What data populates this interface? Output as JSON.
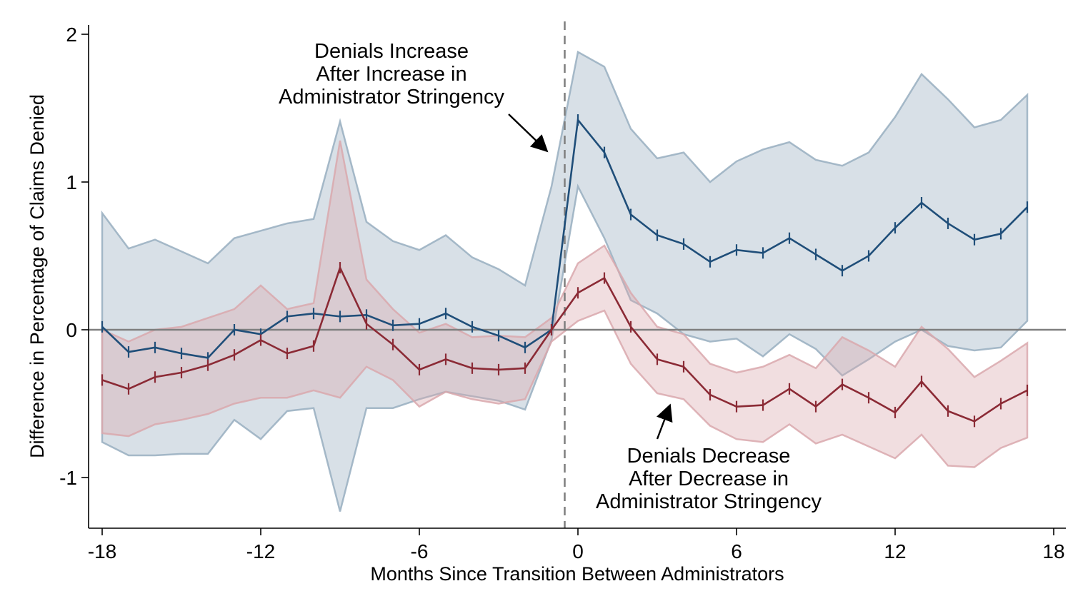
{
  "chart_data": {
    "type": "line",
    "title": "",
    "xlabel": "Months Since Transition Between Administrators",
    "ylabel": "Difference in Percentage of Claims Denied",
    "xlim": [
      -18.4,
      18.4
    ],
    "ylim": [
      -1.33,
      2.07
    ],
    "xticks": [
      -18,
      -12,
      -6,
      0,
      6,
      12,
      18
    ],
    "xtick_labels": [
      "-18",
      "-12",
      "-6",
      "0",
      "6",
      "12",
      "18"
    ],
    "yticks": [
      -1,
      0,
      1,
      2
    ],
    "ytick_labels": [
      "-1",
      "0",
      "1",
      "2"
    ],
    "reference_lines": {
      "vertical_dashed_x": -0.5,
      "horizontal_y": 0
    },
    "grid": false,
    "legend": "none",
    "x": [
      -18,
      -17,
      -16,
      -15,
      -14,
      -13,
      -12,
      -11,
      -10,
      -9,
      -8,
      -7,
      -6,
      -5,
      -4,
      -3,
      -2,
      -1,
      0,
      1,
      2,
      3,
      4,
      5,
      6,
      7,
      8,
      9,
      10,
      11,
      12,
      13,
      14,
      15,
      16,
      17
    ],
    "series": [
      {
        "color": "#1f4e79",
        "band_color": "#98aebf",
        "values": [
          0.02,
          -0.15,
          -0.12,
          -0.16,
          -0.19,
          0.0,
          -0.03,
          0.09,
          0.11,
          0.09,
          0.1,
          0.03,
          0.04,
          0.11,
          0.02,
          -0.04,
          -0.12,
          0.0,
          1.42,
          1.2,
          0.78,
          0.64,
          0.58,
          0.46,
          0.54,
          0.52,
          0.62,
          0.51,
          0.4,
          0.5,
          0.69,
          0.86,
          0.72,
          0.61,
          0.65,
          0.83
        ],
        "ci_upper": [
          0.79,
          0.55,
          0.61,
          0.53,
          0.45,
          0.62,
          0.67,
          0.72,
          0.75,
          1.41,
          0.73,
          0.6,
          0.54,
          0.64,
          0.49,
          0.41,
          0.3,
          0.97,
          1.88,
          1.78,
          1.36,
          1.16,
          1.2,
          1.0,
          1.14,
          1.22,
          1.27,
          1.15,
          1.11,
          1.2,
          1.44,
          1.73,
          1.56,
          1.37,
          1.42,
          1.59
        ],
        "ci_lower": [
          -0.76,
          -0.85,
          -0.85,
          -0.84,
          -0.84,
          -0.61,
          -0.74,
          -0.55,
          -0.53,
          -1.23,
          -0.53,
          -0.53,
          -0.47,
          -0.42,
          -0.45,
          -0.48,
          -0.54,
          -0.07,
          0.97,
          0.62,
          0.2,
          0.11,
          -0.03,
          -0.08,
          -0.06,
          -0.18,
          -0.03,
          -0.13,
          -0.31,
          -0.2,
          -0.08,
          0.0,
          -0.11,
          -0.14,
          -0.12,
          0.06
        ]
      },
      {
        "color": "#8b2a35",
        "band_color": "#d9a8ad",
        "values": [
          -0.34,
          -0.4,
          -0.32,
          -0.29,
          -0.24,
          -0.17,
          -0.07,
          -0.16,
          -0.11,
          0.42,
          0.04,
          -0.1,
          -0.27,
          -0.2,
          -0.26,
          -0.27,
          -0.26,
          0.0,
          0.25,
          0.35,
          0.02,
          -0.2,
          -0.25,
          -0.44,
          -0.52,
          -0.51,
          -0.4,
          -0.52,
          -0.37,
          -0.46,
          -0.56,
          -0.35,
          -0.55,
          -0.62,
          -0.5,
          -0.41
        ],
        "ci_upper": [
          -0.0,
          -0.08,
          0.0,
          0.02,
          0.08,
          0.14,
          0.3,
          0.14,
          0.18,
          1.28,
          0.34,
          0.14,
          -0.02,
          0.04,
          -0.05,
          -0.04,
          -0.05,
          0.08,
          0.45,
          0.57,
          0.25,
          0.02,
          -0.03,
          -0.23,
          -0.29,
          -0.25,
          -0.17,
          -0.26,
          -0.05,
          -0.14,
          -0.25,
          0.02,
          -0.13,
          -0.32,
          -0.21,
          -0.09
        ],
        "ci_lower": [
          -0.7,
          -0.72,
          -0.64,
          -0.61,
          -0.57,
          -0.5,
          -0.46,
          -0.46,
          -0.41,
          -0.46,
          -0.25,
          -0.34,
          -0.52,
          -0.42,
          -0.47,
          -0.5,
          -0.47,
          -0.08,
          0.06,
          0.13,
          -0.23,
          -0.43,
          -0.47,
          -0.65,
          -0.74,
          -0.76,
          -0.64,
          -0.77,
          -0.71,
          -0.79,
          -0.87,
          -0.71,
          -0.92,
          -0.93,
          -0.8,
          -0.73
        ]
      }
    ],
    "annotations": [
      {
        "lines": [
          "Denials Increase",
          "After Increase in",
          "Administrator Stringency"
        ]
      },
      {
        "lines": [
          "Denials Decrease",
          "After Decrease in",
          "Administrator Stringency"
        ]
      }
    ]
  }
}
